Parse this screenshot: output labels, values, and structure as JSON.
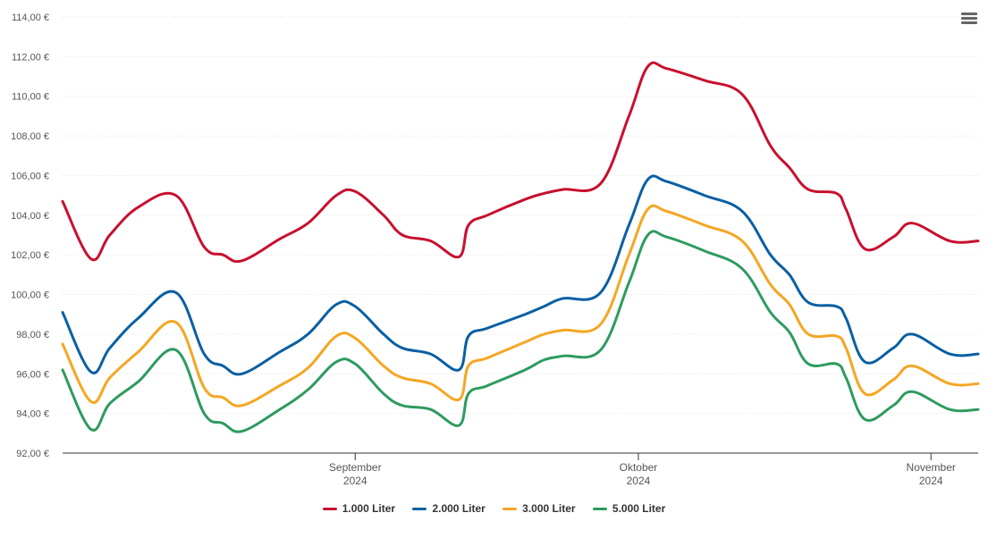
{
  "chart_data": {
    "type": "line",
    "y_tick_labels": [
      "92,00 €",
      "94,00 €",
      "96,00 €",
      "98,00 €",
      "100,00 €",
      "102,00 €",
      "104,00 €",
      "106,00 €",
      "108,00 €",
      "110,00 €",
      "112,00 €",
      "114,00 €"
    ],
    "ylim": [
      92,
      114
    ],
    "x_tick_labels": [
      {
        "month": "September",
        "year": "2024",
        "date": "2024-09-01"
      },
      {
        "month": "Oktober",
        "year": "2024",
        "date": "2024-10-01"
      },
      {
        "month": "November",
        "year": "2024",
        "date": "2024-11-01"
      }
    ],
    "x": [
      "2024-08-01",
      "2024-08-04",
      "2024-08-06",
      "2024-08-09",
      "2024-08-13",
      "2024-08-16",
      "2024-08-18",
      "2024-08-20",
      "2024-08-24",
      "2024-08-27",
      "2024-08-30",
      "2024-09-01",
      "2024-09-04",
      "2024-09-06",
      "2024-09-09",
      "2024-09-12",
      "2024-09-13",
      "2024-09-15",
      "2024-09-19",
      "2024-09-21",
      "2024-09-23",
      "2024-09-27",
      "2024-09-30",
      "2024-10-02",
      "2024-10-04",
      "2024-10-08",
      "2024-10-12",
      "2024-10-15",
      "2024-10-17",
      "2024-10-19",
      "2024-10-22",
      "2024-10-23",
      "2024-10-25",
      "2024-10-28",
      "2024-10-30",
      "2024-11-03",
      "2024-11-06"
    ],
    "series": [
      {
        "name": "1.000 Liter",
        "color": "#c8102e",
        "values": [
          104.7,
          101.8,
          103.0,
          104.4,
          105.0,
          102.4,
          102.0,
          101.7,
          102.8,
          103.6,
          105.0,
          105.2,
          104.0,
          103.0,
          102.7,
          101.9,
          103.5,
          104.0,
          104.8,
          105.1,
          105.3,
          105.6,
          109.0,
          111.5,
          111.4,
          110.8,
          110.1,
          107.5,
          106.4,
          105.3,
          105.1,
          104.3,
          102.3,
          102.9,
          103.6,
          102.7,
          102.7
        ]
      },
      {
        "name": "2.000 Liter",
        "color": "#0a5fa3",
        "values": [
          99.1,
          96.1,
          97.3,
          98.8,
          100.1,
          97.0,
          96.4,
          96.0,
          97.1,
          98.0,
          99.5,
          99.4,
          98.0,
          97.3,
          97.0,
          96.2,
          97.9,
          98.3,
          99.0,
          99.4,
          99.8,
          100.1,
          103.5,
          105.8,
          105.7,
          105.0,
          104.2,
          102.0,
          101.0,
          99.6,
          99.4,
          98.8,
          96.6,
          97.3,
          98.0,
          97.0,
          97.0
        ]
      },
      {
        "name": "3.000 Liter",
        "color": "#f5a623",
        "values": [
          97.5,
          94.6,
          95.8,
          97.1,
          98.6,
          95.3,
          94.8,
          94.4,
          95.4,
          96.3,
          97.9,
          97.8,
          96.4,
          95.8,
          95.5,
          94.7,
          96.4,
          96.8,
          97.6,
          98.0,
          98.2,
          98.5,
          102.0,
          104.3,
          104.2,
          103.5,
          102.7,
          100.5,
          99.5,
          98.0,
          97.9,
          97.3,
          95.0,
          95.7,
          96.4,
          95.5,
          95.5
        ]
      },
      {
        "name": "5.000 Liter",
        "color": "#2e9b5f",
        "values": [
          96.2,
          93.2,
          94.5,
          95.6,
          97.2,
          94.0,
          93.5,
          93.1,
          94.2,
          95.2,
          96.6,
          96.5,
          95.0,
          94.4,
          94.2,
          93.4,
          95.0,
          95.4,
          96.2,
          96.7,
          96.9,
          97.2,
          100.6,
          103.0,
          102.9,
          102.2,
          101.3,
          99.1,
          98.1,
          96.5,
          96.5,
          95.8,
          93.7,
          94.4,
          95.1,
          94.2,
          94.2
        ]
      }
    ],
    "legend_position": "bottom-center",
    "grid": true
  },
  "legend": [
    {
      "label": "1.000 Liter",
      "color": "#c8102e"
    },
    {
      "label": "2.000 Liter",
      "color": "#0a5fa3"
    },
    {
      "label": "3.000 Liter",
      "color": "#f5a623"
    },
    {
      "label": "5.000 Liter",
      "color": "#2e9b5f"
    }
  ],
  "menu_icon": "hamburger-menu-icon"
}
